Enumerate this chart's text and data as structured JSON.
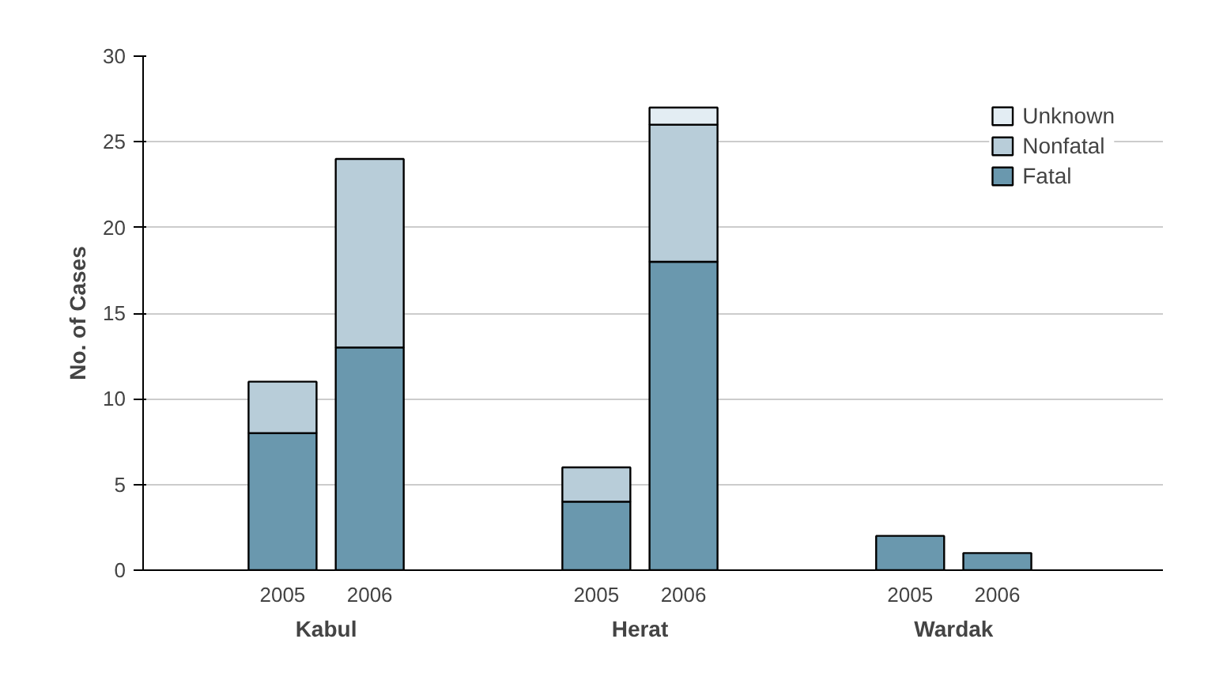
{
  "chart_data": {
    "type": "bar",
    "stacked": true,
    "ylabel": "No. of Cases",
    "categories": [
      "2005",
      "2006",
      "2005",
      "2006",
      "2005",
      "2006"
    ],
    "annotations": [
      "Kabul",
      "Herat",
      "Wardak"
    ],
    "series": [
      {
        "name": "Fatal",
        "color": "#6a98ae",
        "values": [
          8,
          13,
          4,
          18,
          2,
          1
        ]
      },
      {
        "name": "Nonfatal",
        "color": "#b8cdd9",
        "values": [
          3,
          11,
          2,
          8,
          null,
          null
        ]
      },
      {
        "name": "Unknown",
        "color": "#e3edf3",
        "values": [
          null,
          null,
          null,
          1,
          null,
          null
        ]
      }
    ],
    "ylim": [
      0,
      30
    ],
    "yticks": [
      0,
      5,
      10,
      15,
      20,
      25,
      30
    ],
    "grid": "y",
    "legend": "top right"
  }
}
